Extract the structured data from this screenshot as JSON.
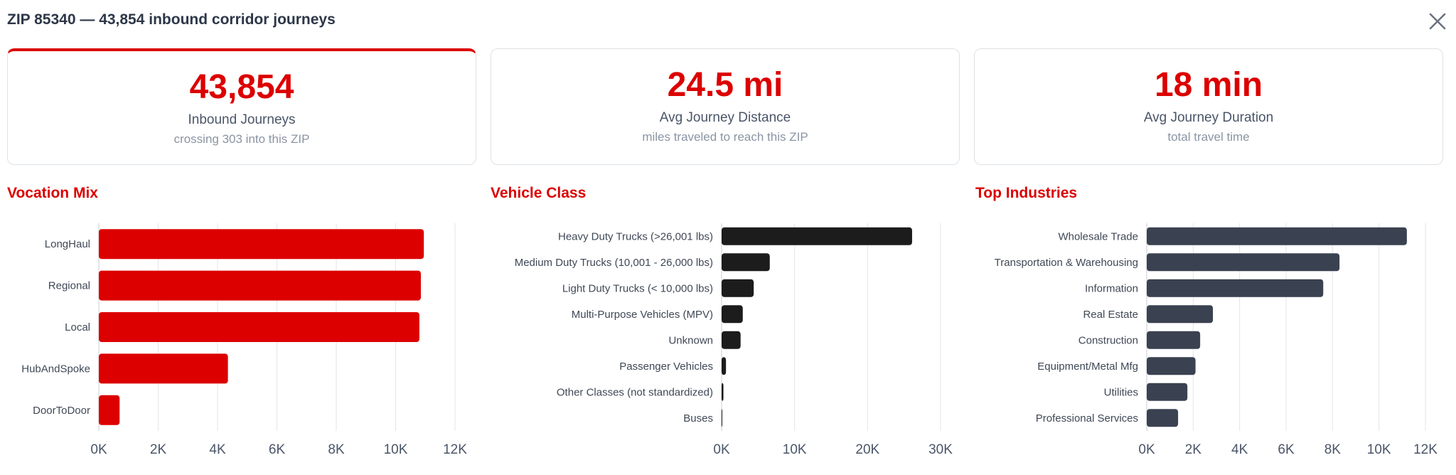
{
  "header": {
    "title": "ZIP 85340 — 43,854 inbound corridor journeys",
    "close_icon": "close-icon"
  },
  "kpis": [
    {
      "value": "43,854",
      "label": "Inbound Journeys",
      "sub": "crossing 303 into this ZIP"
    },
    {
      "value": "24.5 mi",
      "label": "Avg Journey Distance",
      "sub": "miles traveled to reach this ZIP"
    },
    {
      "value": "18 min",
      "label": "Avg Journey Duration",
      "sub": "total travel time"
    }
  ],
  "colors": {
    "accent": "#dc0000",
    "vehicle_bar": "#1c1c1c",
    "industry_bar": "#3a4150",
    "grid": "#e2e5ea"
  },
  "chart_data": [
    {
      "type": "bar",
      "orientation": "horizontal",
      "title": "Vocation Mix",
      "categories": [
        "LongHaul",
        "Regional",
        "Local",
        "HubAndSpoke",
        "DoorToDoor"
      ],
      "values": [
        10950,
        10850,
        10800,
        4350,
        700
      ],
      "xlim": [
        0,
        12000
      ],
      "xticks": [
        "0K",
        "2K",
        "4K",
        "6K",
        "8K",
        "10K",
        "12K"
      ],
      "grid": true
    },
    {
      "type": "bar",
      "orientation": "horizontal",
      "title": "Vehicle Class",
      "categories": [
        "Heavy Duty Trucks (>26,001 lbs)",
        "Medium Duty Trucks (10,001 - 26,000 lbs)",
        "Light Duty Trucks (< 10,000 lbs)",
        "Multi-Purpose Vehicles (MPV)",
        "Unknown",
        "Passenger Vehicles",
        "Other Classes (not standardized)",
        "Buses"
      ],
      "values": [
        26100,
        6600,
        4400,
        2900,
        2600,
        600,
        250,
        80
      ],
      "xlim": [
        0,
        30000
      ],
      "xticks": [
        "0K",
        "10K",
        "20K",
        "30K"
      ],
      "grid": true
    },
    {
      "type": "bar",
      "orientation": "horizontal",
      "title": "Top Industries",
      "categories": [
        "Wholesale Trade",
        "Transportation & Warehousing",
        "Information",
        "Real Estate",
        "Construction",
        "Equipment/Metal Mfg",
        "Utilities",
        "Professional Services"
      ],
      "values": [
        11200,
        8300,
        7600,
        2850,
        2300,
        2100,
        1750,
        1350
      ],
      "xlim": [
        0,
        12000
      ],
      "xticks": [
        "0K",
        "2K",
        "4K",
        "6K",
        "8K",
        "10K",
        "12K"
      ],
      "grid": true
    }
  ]
}
